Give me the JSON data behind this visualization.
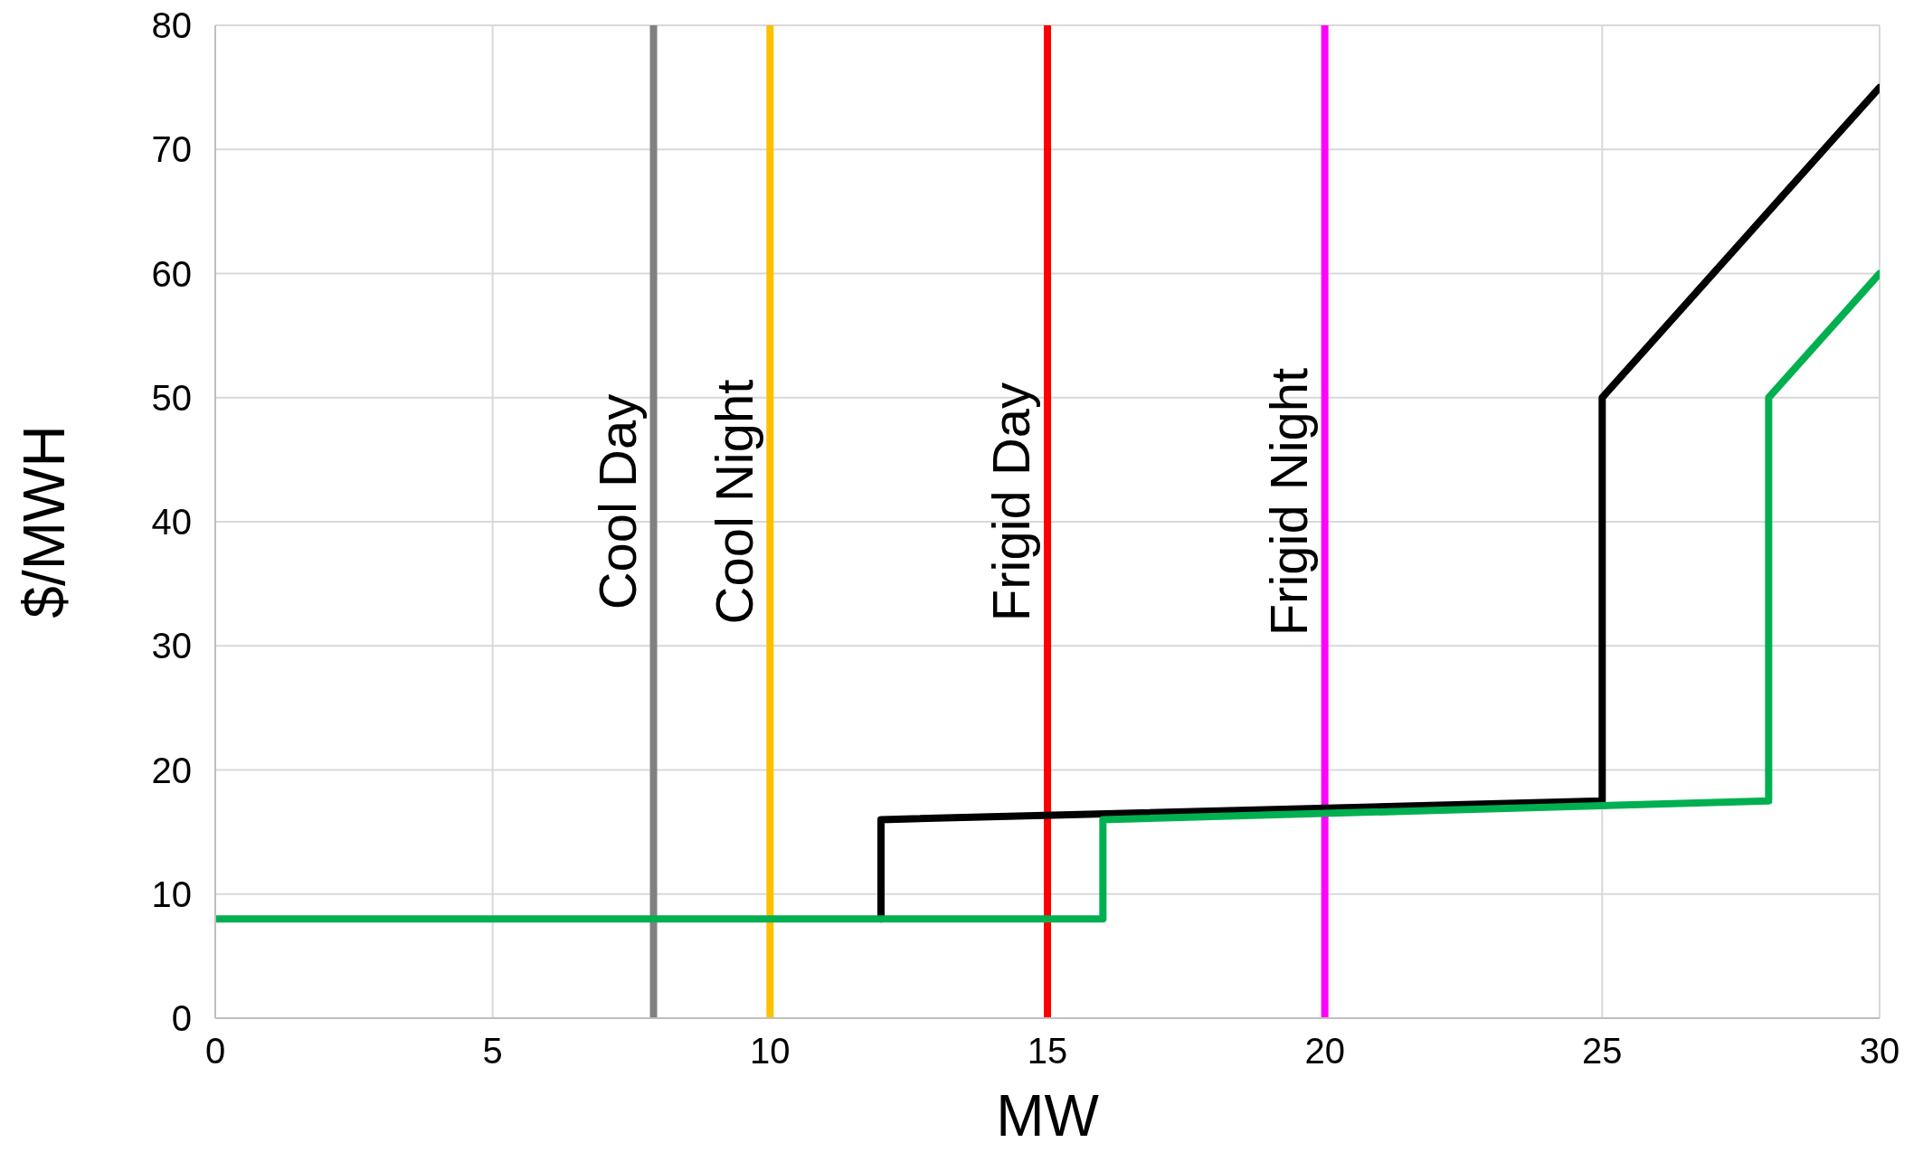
{
  "chart_data": {
    "type": "line",
    "xlabel": "MW",
    "ylabel": "$/MWH",
    "xlim": [
      0,
      30
    ],
    "xticks": [
      0,
      5,
      10,
      15,
      20,
      25,
      30
    ],
    "ylim": [
      0,
      80
    ],
    "yticks": [
      0,
      10,
      20,
      30,
      40,
      50,
      60,
      70,
      80
    ],
    "grid": true,
    "marker": "none",
    "line_style": "solid",
    "series": [
      {
        "color": "#000000",
        "x": [
          12,
          12,
          25,
          25,
          30
        ],
        "values": [
          8,
          16,
          17.5,
          50,
          75
        ]
      },
      {
        "color": "#00b050",
        "x": [
          0,
          16,
          16,
          28,
          28,
          30
        ],
        "values": [
          8,
          8,
          16,
          17.5,
          50,
          60
        ]
      }
    ],
    "ref_lines": [
      {
        "axis": "x",
        "value": 7.9,
        "label": "Cool Day",
        "color": "#808080"
      },
      {
        "axis": "x",
        "value": 10,
        "label": "Cool Night",
        "color": "#ffc000"
      },
      {
        "axis": "x",
        "value": 15,
        "label": "Frigid Day",
        "color": "#ff0000"
      },
      {
        "axis": "x",
        "value": 20,
        "label": "Frigid Night",
        "color": "#ff00ff"
      }
    ]
  }
}
